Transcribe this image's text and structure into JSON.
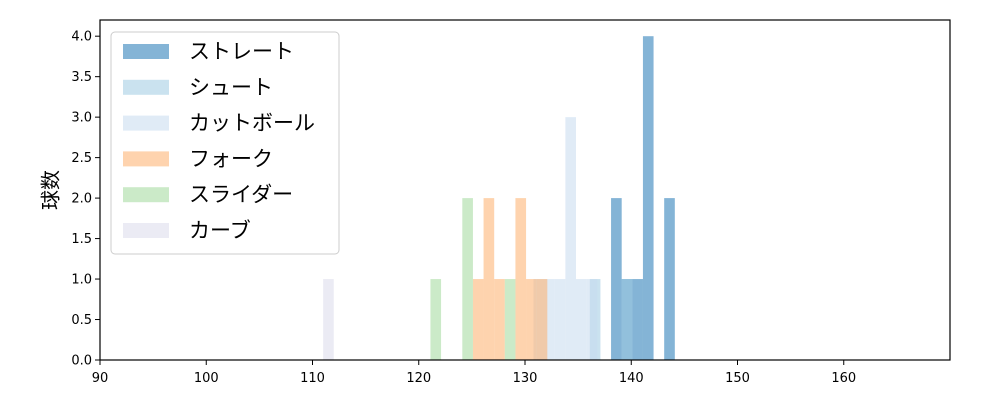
{
  "chart_data": {
    "type": "bar",
    "xlabel": "",
    "ylabel": "球数",
    "xlim": [
      90,
      170
    ],
    "ylim": [
      0,
      4.2
    ],
    "x_ticks": [
      "90",
      "100",
      "110",
      "120",
      "130",
      "140",
      "150",
      "160"
    ],
    "y_ticks": [
      "0.0",
      "0.5",
      "1.0",
      "1.5",
      "2.0",
      "2.5",
      "3.0",
      "3.5",
      "4.0"
    ],
    "grid": false,
    "legend_position": "top-left",
    "series": [
      {
        "name": "ストレート",
        "color": "#1f77b4",
        "bins": [
          {
            "x0": 138.1,
            "x1": 139.1,
            "count": 2
          },
          {
            "x0": 139.1,
            "x1": 140.1,
            "count": 1
          },
          {
            "x0": 140.1,
            "x1": 141.1,
            "count": 1
          },
          {
            "x0": 141.1,
            "x1": 142.1,
            "count": 4
          },
          {
            "x0": 143.1,
            "x1": 144.1,
            "count": 2
          }
        ]
      },
      {
        "name": "シュート",
        "color": "#9ecae1",
        "bins": [
          {
            "x0": 136.1,
            "x1": 137.1,
            "count": 1
          },
          {
            "x0": 139.1,
            "x1": 140.1,
            "count": 1
          }
        ]
      },
      {
        "name": "カットボール",
        "color": "#c6dbef",
        "bins": [
          {
            "x0": 130.8,
            "x1": 131.8,
            "count": 1
          },
          {
            "x0": 131.8,
            "x1": 132.8,
            "count": 1
          },
          {
            "x0": 132.8,
            "x1": 133.8,
            "count": 1
          },
          {
            "x0": 133.8,
            "x1": 134.8,
            "count": 3
          },
          {
            "x0": 134.8,
            "x1": 135.8,
            "count": 1
          },
          {
            "x0": 135.8,
            "x1": 136.8,
            "count": 1
          }
        ]
      },
      {
        "name": "フォーク",
        "color": "#fdae6b",
        "bins": [
          {
            "x0": 125.1,
            "x1": 126.1,
            "count": 1
          },
          {
            "x0": 126.1,
            "x1": 127.1,
            "count": 2
          },
          {
            "x0": 127.1,
            "x1": 128.1,
            "count": 1
          },
          {
            "x0": 129.1,
            "x1": 130.1,
            "count": 2
          },
          {
            "x0": 130.1,
            "x1": 131.1,
            "count": 1
          },
          {
            "x0": 131.1,
            "x1": 132.1,
            "count": 1
          }
        ]
      },
      {
        "name": "スライダー",
        "color": "#a1d99b",
        "bins": [
          {
            "x0": 121.1,
            "x1": 122.1,
            "count": 1
          },
          {
            "x0": 124.1,
            "x1": 125.1,
            "count": 2
          },
          {
            "x0": 128.1,
            "x1": 129.1,
            "count": 1
          }
        ]
      },
      {
        "name": "カーブ",
        "color": "#dadaeb",
        "bins": [
          {
            "x0": 111.0,
            "x1": 112.0,
            "count": 1
          }
        ]
      }
    ]
  }
}
